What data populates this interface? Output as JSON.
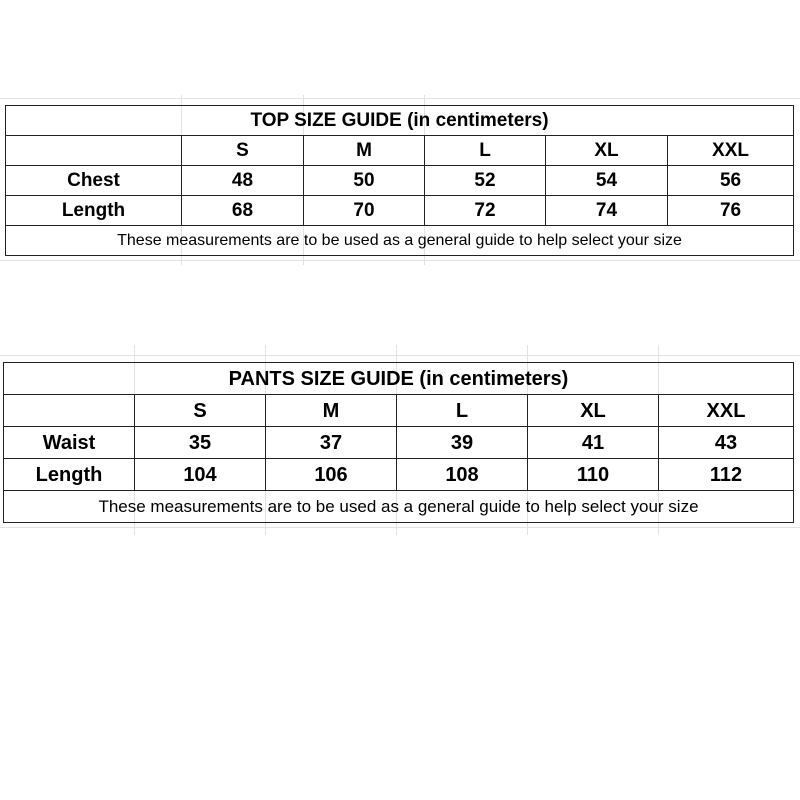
{
  "top_guide": {
    "title": "TOP SIZE GUIDE (in centimeters)",
    "sizes": [
      "S",
      "M",
      "L",
      "XL",
      "XXL"
    ],
    "rows": [
      {
        "label": "Chest",
        "values": [
          "48",
          "50",
          "52",
          "54",
          "56"
        ]
      },
      {
        "label": "Length",
        "values": [
          "68",
          "70",
          "72",
          "74",
          "76"
        ]
      }
    ],
    "note": "These measurements are to be used as a general guide to help select your size"
  },
  "pants_guide": {
    "title": "PANTS SIZE GUIDE (in centimeters)",
    "sizes": [
      "S",
      "M",
      "L",
      "XL",
      "XXL"
    ],
    "rows": [
      {
        "label": "Waist",
        "values": [
          "35",
          "37",
          "39",
          "41",
          "43"
        ]
      },
      {
        "label": "Length",
        "values": [
          "104",
          "106",
          "108",
          "110",
          "112"
        ]
      }
    ],
    "note": "These measurements are to be used as a general guide to help select your size"
  }
}
